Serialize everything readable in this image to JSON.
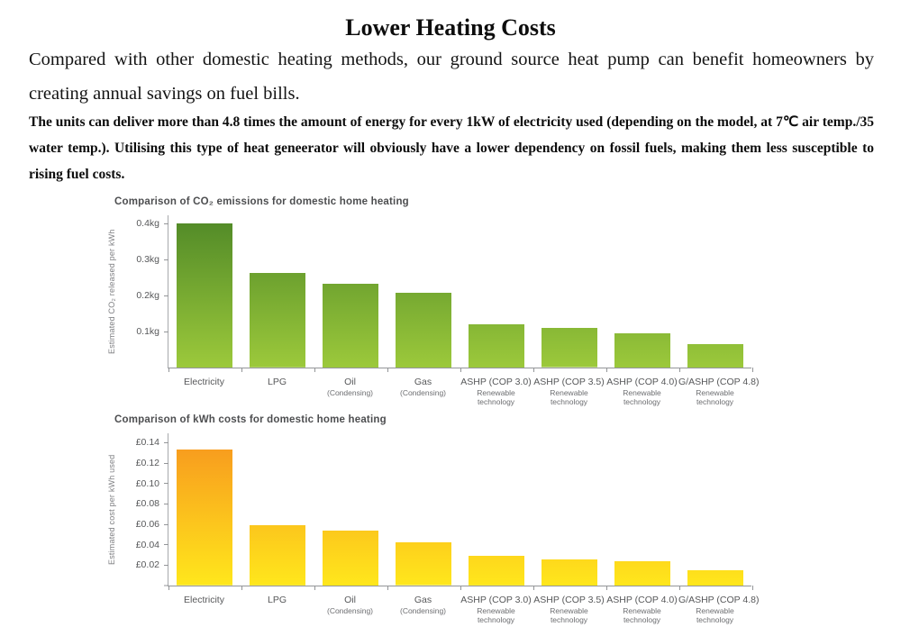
{
  "page": {
    "title": "Lower Heating Costs",
    "paragraph1": "Compared with other domestic heating methods, our ground source heat pump can benefit homeowners by creating annual savings on fuel bills.",
    "paragraph2": "The units can deliver more than 4.8 times the amount of energy for every 1kW of electricity used (depending on the model, at 7℃ air temp./35 water temp.). Utilising this type of heat geneerator will obviously have a lower dependency on fossil fuels, making them less susceptible to rising fuel costs."
  },
  "chart_data": [
    {
      "type": "bar",
      "title": "Comparison of CO₂ emissions for domestic home heating",
      "xlabel": "",
      "ylabel": "Estimated CO₂ released per kWh",
      "categories": [
        "Electricity",
        "LPG",
        "Oil",
        "Gas",
        "ASHP (COP 3.0)",
        "ASHP (COP 3.5)",
        "ASHP (COP 4.0)",
        "G/ASHP (COP 4.8)"
      ],
      "sublabels": [
        "",
        "",
        "(Condensing)",
        "(Condensing)",
        "Renewable technology",
        "Renewable technology",
        "Renewable technology",
        "Renewable technology"
      ],
      "values": [
        0.4,
        0.262,
        0.233,
        0.208,
        0.121,
        0.109,
        0.096,
        0.066
      ],
      "unit": "kg CO₂ per kWh",
      "yticks": [
        {
          "value": 0.1,
          "label": "0.1kg"
        },
        {
          "value": 0.2,
          "label": "0.2kg"
        },
        {
          "value": 0.3,
          "label": "0.3kg"
        },
        {
          "value": 0.4,
          "label": "0.4kg"
        }
      ],
      "ylim": [
        0,
        0.425
      ],
      "grid": false,
      "legend": "none",
      "bar_gradient_top": "#4f8827",
      "bar_gradient_bottom": "#9cc93b"
    },
    {
      "type": "bar",
      "title": "Comparison of kWh costs for domestic home heating",
      "xlabel": "",
      "ylabel": "Estimated cost per kWh used",
      "categories": [
        "Electricity",
        "LPG",
        "Oil",
        "Gas",
        "ASHP (COP 3.0)",
        "ASHP (COP 3.5)",
        "ASHP (COP 4.0)",
        "G/ASHP (COP 4.8)"
      ],
      "sublabels": [
        "",
        "",
        "(Condensing)",
        "(Condensing)",
        "Renewable technology",
        "Renewable technology",
        "Renewable technology",
        "Renewable technology"
      ],
      "values": [
        0.133,
        0.059,
        0.054,
        0.042,
        0.029,
        0.026,
        0.024,
        0.015
      ],
      "unit": "£ per kWh",
      "yticks": [
        {
          "value": 0,
          "label": ""
        },
        {
          "value": 0.02,
          "label": "£0.02"
        },
        {
          "value": 0.04,
          "label": "£0.04"
        },
        {
          "value": 0.06,
          "label": "£0.06"
        },
        {
          "value": 0.08,
          "label": "£0.08"
        },
        {
          "value": 0.1,
          "label": "£0.10"
        },
        {
          "value": 0.12,
          "label": "£0.12"
        },
        {
          "value": 0.14,
          "label": "£0.14"
        }
      ],
      "ylim": [
        0,
        0.15
      ],
      "grid": false,
      "legend": "none",
      "bar_gradient_top": "#f7941e",
      "bar_gradient_bottom": "#ffe71c"
    }
  ]
}
